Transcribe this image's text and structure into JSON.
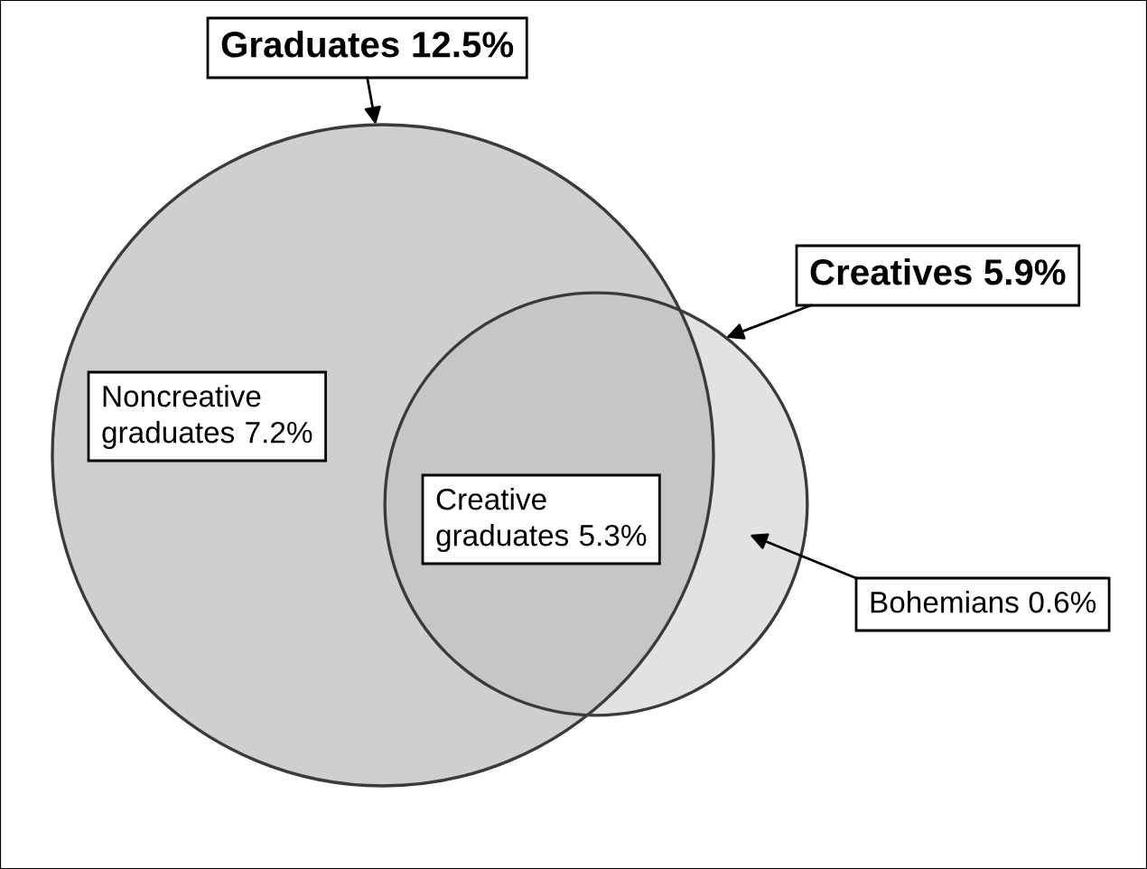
{
  "chart_data": {
    "type": "other",
    "categories": [
      "Graduates",
      "Creatives",
      "Noncreative\ngraduates",
      "Creative\ngraduates",
      "Bohemians"
    ],
    "values": [
      12.5,
      5.9,
      7.2,
      5.3,
      0.6
    ],
    "value_labels": [
      "12.5%",
      "5.9%",
      "7.2%",
      "5.3%",
      "0.6%"
    ]
  }
}
